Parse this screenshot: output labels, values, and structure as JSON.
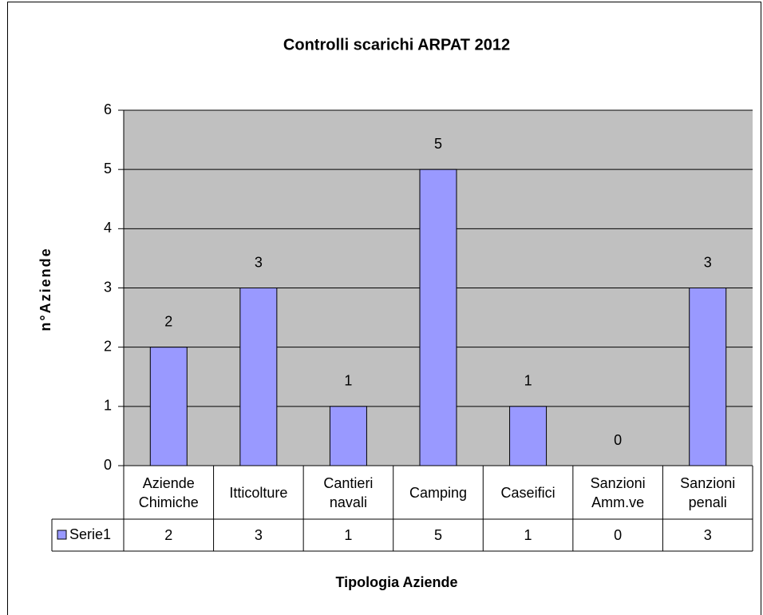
{
  "chart_data": {
    "type": "bar",
    "title": "Controlli scarichi ARPAT 2012",
    "x_label": "Tipologia Aziende",
    "y_label": "n°Aziende",
    "categories": [
      "Aziende Chimiche",
      "Itticolture",
      "Cantieri navali",
      "Camping",
      "Caseifici",
      "Sanzioni Amm.ve",
      "Sanzioni penali"
    ],
    "series": [
      {
        "name": "Serie1",
        "color": "#9999ff",
        "values": [
          2,
          3,
          1,
          5,
          1,
          0,
          3
        ]
      }
    ],
    "ylim": [
      0,
      6
    ],
    "yticks": [
      0,
      1,
      2,
      3,
      4,
      5,
      6
    ],
    "grid": true
  }
}
